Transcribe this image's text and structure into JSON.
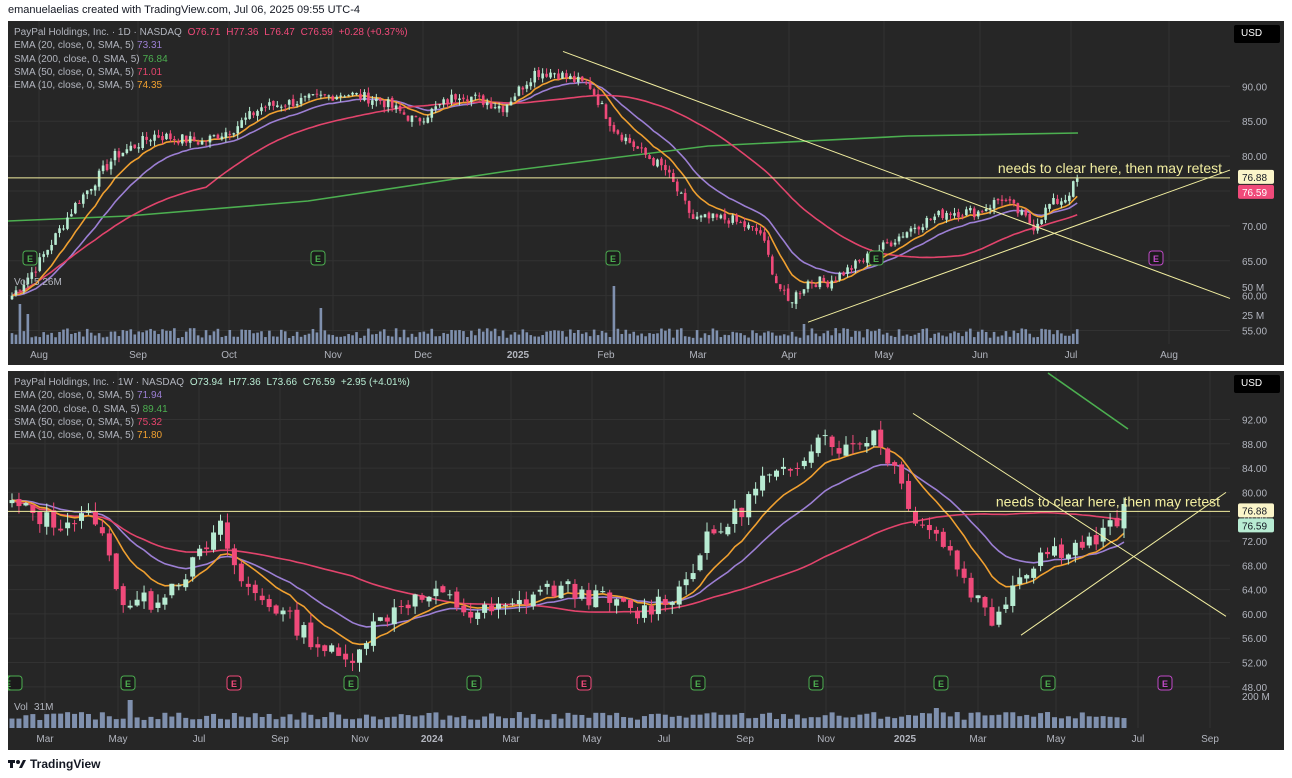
{
  "caption": "emanuelaelias created with TradingView.com, Jul 06, 2025 09:55 UTC-4",
  "footer": {
    "logo": "TradingView"
  },
  "colors": {
    "background": "#262626",
    "ema20": "#9c7fd4",
    "sma200": "#4caf50",
    "sma50": "#e2446c",
    "ema10": "#f0a030",
    "up": "#b8ecd3",
    "down": "#f04a7a",
    "annotation": "#f2eea0",
    "volume": "#8fa3c7"
  },
  "chart_data": [
    {
      "type": "candlestick",
      "timeframe": "1D",
      "header": {
        "symbol": "PayPal Holdings, Inc. · 1D · NASDAQ",
        "o": "O76.71",
        "h": "H77.36",
        "l": "L76.47",
        "c": "C76.59",
        "chg": "+0.28 (+0.37%)"
      },
      "indicators": [
        {
          "label": "EMA (20, close, 0, SMA, 5)",
          "value": "73.31",
          "color": "#9c7fd4"
        },
        {
          "label": "SMA (200, close, 0, SMA, 5)",
          "value": "76.84",
          "color": "#4caf50"
        },
        {
          "label": "SMA (50, close, 0, SMA, 5)",
          "value": "71.01",
          "color": "#e2446c"
        },
        {
          "label": "EMA (10, close, 0, SMA, 5)",
          "value": "74.35",
          "color": "#f0a030"
        }
      ],
      "currency": "USD",
      "y_ticks": [
        "90.00",
        "85.00",
        "80.00",
        "75.00",
        "70.00",
        "65.00",
        "60.00",
        "55.00"
      ],
      "ylim": [
        53.5,
        98.5
      ],
      "x_ticks": [
        "Aug",
        "Sep",
        "Oct",
        "Nov",
        "Dec",
        "2025",
        "Feb",
        "Mar",
        "Apr",
        "May",
        "Jun",
        "Jul",
        "Aug"
      ],
      "price_tags": [
        {
          "value": "76.88",
          "kind": "annotation"
        },
        {
          "value": "76.59",
          "kind": "last"
        }
      ],
      "annotation": "needs to clear here, then may retest",
      "earnings_markers": [
        "E",
        "E",
        "E",
        "E",
        "E"
      ],
      "volume": {
        "label": "Vol",
        "value": "5.26M",
        "ticks": [
          "50 M",
          "25 M"
        ]
      },
      "anchors": [
        [
          0,
          60
        ],
        [
          6,
          64
        ],
        [
          16,
          73
        ],
        [
          26,
          80
        ],
        [
          36,
          83
        ],
        [
          48,
          82
        ],
        [
          56,
          84
        ],
        [
          63,
          87
        ],
        [
          74,
          88
        ],
        [
          84,
          89
        ],
        [
          93,
          88
        ],
        [
          102,
          85
        ],
        [
          113,
          89
        ],
        [
          124,
          87
        ],
        [
          132,
          92
        ],
        [
          137,
          92
        ],
        [
          146,
          90
        ],
        [
          152,
          84
        ],
        [
          158,
          81
        ],
        [
          165,
          78
        ],
        [
          172,
          71
        ],
        [
          181,
          71
        ],
        [
          189,
          69
        ],
        [
          193,
          62
        ],
        [
          196,
          59
        ],
        [
          201,
          62
        ],
        [
          206,
          62
        ],
        [
          212,
          64
        ],
        [
          220,
          67
        ],
        [
          228,
          70
        ],
        [
          236,
          72
        ],
        [
          244,
          72
        ],
        [
          250,
          74
        ],
        [
          254,
          72
        ],
        [
          258,
          70
        ],
        [
          262,
          73
        ],
        [
          266,
          74
        ],
        [
          269,
          76.6
        ]
      ]
    },
    {
      "type": "candlestick",
      "timeframe": "1W",
      "header": {
        "symbol": "PayPal Holdings, Inc. · 1W · NASDAQ",
        "o": "O73.94",
        "h": "H77.36",
        "l": "L73.66",
        "c": "C76.59",
        "chg": "+2.95 (+4.01%)"
      },
      "indicators": [
        {
          "label": "EMA (20, close, 0, SMA, 5)",
          "value": "71.94",
          "color": "#9c7fd4"
        },
        {
          "label": "SMA (200, close, 0, SMA, 5)",
          "value": "89.41",
          "color": "#4caf50"
        },
        {
          "label": "SMA (50, close, 0, SMA, 5)",
          "value": "75.32",
          "color": "#e2446c"
        },
        {
          "label": "EMA (10, close, 0, SMA, 5)",
          "value": "71.80",
          "color": "#f0a030"
        }
      ],
      "currency": "USD",
      "y_ticks": [
        "92.00",
        "88.00",
        "84.00",
        "80.00",
        "76.00",
        "72.00",
        "68.00",
        "64.00",
        "60.00",
        "56.00",
        "52.00",
        "48.00"
      ],
      "ylim": [
        46,
        98
      ],
      "x_ticks": [
        "Mar",
        "May",
        "Jul",
        "Sep",
        "Nov",
        "2024",
        "Mar",
        "May",
        "Jul",
        "Sep",
        "Nov",
        "2025",
        "Mar",
        "May",
        "Jul",
        "Sep"
      ],
      "price_tags": [
        {
          "value": "76.88",
          "kind": "annotation"
        },
        {
          "value": "76.59",
          "kind": "last"
        }
      ],
      "annotation": "needs to clear here, then may retest",
      "earnings_markers": [
        "E",
        "E",
        "E",
        "E",
        "E",
        "E",
        "E",
        "E",
        "E",
        "E",
        "E",
        "E"
      ],
      "volume": {
        "label": "Vol",
        "value": "31M",
        "ticks": [
          "200 M"
        ]
      },
      "anchors": [
        [
          0,
          78
        ],
        [
          6,
          75
        ],
        [
          12,
          76
        ],
        [
          16,
          62
        ],
        [
          20,
          62
        ],
        [
          26,
          68
        ],
        [
          30,
          74
        ],
        [
          33,
          65
        ],
        [
          38,
          61
        ],
        [
          44,
          55
        ],
        [
          48,
          52
        ],
        [
          52,
          58
        ],
        [
          56,
          62
        ],
        [
          62,
          63
        ],
        [
          66,
          60
        ],
        [
          72,
          61
        ],
        [
          76,
          64
        ],
        [
          80,
          64
        ],
        [
          86,
          62
        ],
        [
          90,
          60
        ],
        [
          96,
          64
        ],
        [
          100,
          72
        ],
        [
          104,
          76
        ],
        [
          108,
          82
        ],
        [
          112,
          83
        ],
        [
          116,
          90
        ],
        [
          120,
          87
        ],
        [
          124,
          90
        ],
        [
          127,
          84
        ],
        [
          130,
          76
        ],
        [
          134,
          72
        ],
        [
          138,
          64
        ],
        [
          141,
          59
        ],
        [
          144,
          65
        ],
        [
          148,
          70
        ],
        [
          152,
          71
        ],
        [
          156,
          72
        ],
        [
          160,
          76.6
        ]
      ]
    }
  ]
}
